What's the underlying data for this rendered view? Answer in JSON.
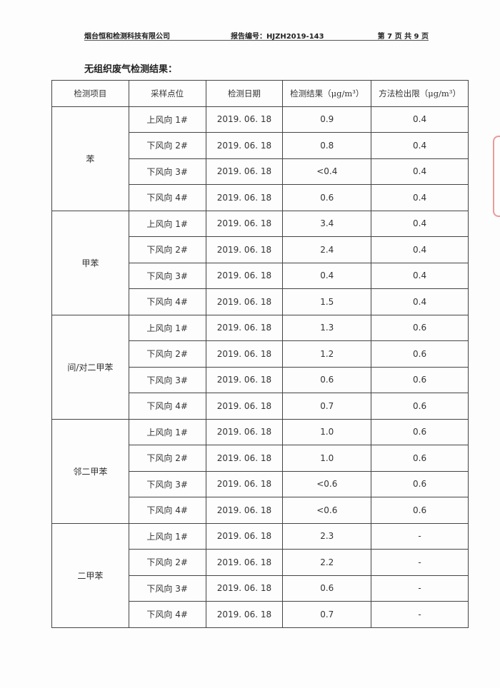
{
  "header": {
    "company": "烟台恒和检测科技有限公司",
    "report_no": "报告编号：HJZH2019-143",
    "page": "第 7 页 共 9 页"
  },
  "title": "无组织废气检测结果：",
  "columns": [
    "检测项目",
    "采样点位",
    "检测日期",
    "检测结果（μg/m³）",
    "方法检出限（μg/m³）"
  ],
  "groups": [
    {
      "item": "苯",
      "rows": [
        [
          "上风向 1#",
          "2019. 06. 18",
          "0.9",
          "0.4"
        ],
        [
          "下风向 2#",
          "2019. 06. 18",
          "0.8",
          "0.4"
        ],
        [
          "下风向 3#",
          "2019. 06. 18",
          "<0.4",
          "0.4"
        ],
        [
          "下风向 4#",
          "2019. 06. 18",
          "0.6",
          "0.4"
        ]
      ]
    },
    {
      "item": "甲苯",
      "rows": [
        [
          "上风向 1#",
          "2019. 06. 18",
          "3.4",
          "0.4"
        ],
        [
          "下风向 2#",
          "2019. 06. 18",
          "2.4",
          "0.4"
        ],
        [
          "下风向 3#",
          "2019. 06. 18",
          "0.4",
          "0.4"
        ],
        [
          "下风向 4#",
          "2019. 06. 18",
          "1.5",
          "0.4"
        ]
      ]
    },
    {
      "item": "间/对二甲苯",
      "rows": [
        [
          "上风向 1#",
          "2019. 06. 18",
          "1.3",
          "0.6"
        ],
        [
          "下风向 2#",
          "2019. 06. 18",
          "1.2",
          "0.6"
        ],
        [
          "下风向 3#",
          "2019. 06. 18",
          "0.6",
          "0.6"
        ],
        [
          "下风向 4#",
          "2019. 06. 18",
          "0.7",
          "0.6"
        ]
      ]
    },
    {
      "item": "邻二甲苯",
      "rows": [
        [
          "上风向 1#",
          "2019. 06. 18",
          "1.0",
          "0.6"
        ],
        [
          "下风向 2#",
          "2019. 06. 18",
          "1.0",
          "0.6"
        ],
        [
          "下风向 3#",
          "2019. 06. 18",
          "<0.6",
          "0.6"
        ],
        [
          "下风向 4#",
          "2019. 06. 18",
          "<0.6",
          "0.6"
        ]
      ]
    },
    {
      "item": "二甲苯",
      "rows": [
        [
          "上风向 1#",
          "2019. 06. 18",
          "2.3",
          "-"
        ],
        [
          "下风向 2#",
          "2019. 06. 18",
          "2.2",
          "-"
        ],
        [
          "下风向 3#",
          "2019. 06. 18",
          "0.6",
          "-"
        ],
        [
          "下风向 4#",
          "2019. 06. 18",
          "0.7",
          "-"
        ]
      ]
    }
  ]
}
